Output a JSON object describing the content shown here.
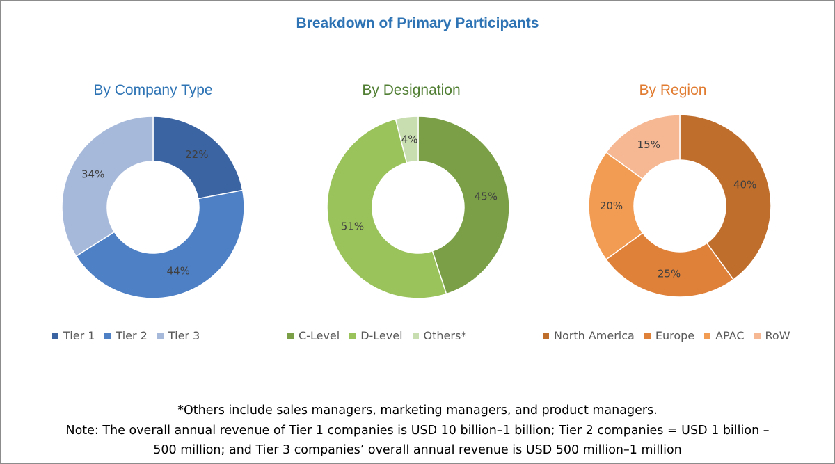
{
  "title": "Breakdown of Primary Participants",
  "chart_data": [
    {
      "type": "pie",
      "title": "By Company Type",
      "title_color": "#2e74b5",
      "categories": [
        "Tier 1",
        "Tier 2",
        "Tier 3"
      ],
      "values": [
        22,
        44,
        34
      ],
      "labels": [
        "22%",
        "44%",
        "34%"
      ],
      "colors": [
        "#3b64a3",
        "#4e80c6",
        "#a7b9da"
      ],
      "legend": "bottom"
    },
    {
      "type": "pie",
      "title": "By Designation",
      "title_color": "#507e32",
      "categories": [
        "C-Level",
        "D-Level",
        "Others*"
      ],
      "values": [
        45,
        51,
        4
      ],
      "labels": [
        "45%",
        "51%",
        "4%"
      ],
      "colors": [
        "#7a9f47",
        "#9bc35c",
        "#c9deb0"
      ],
      "legend": "bottom"
    },
    {
      "type": "pie",
      "title": "By Region",
      "title_color": "#e07b30",
      "categories": [
        "North America",
        "Europe",
        "APAC",
        "RoW"
      ],
      "values": [
        40,
        25,
        20,
        15
      ],
      "labels": [
        "40%",
        "25%",
        "20%",
        "15%"
      ],
      "colors": [
        "#c06e2c",
        "#e0813a",
        "#f29b52",
        "#f6b793"
      ],
      "legend": "bottom"
    }
  ],
  "footnotes": {
    "line1": "*Others include sales managers, marketing managers, and product managers.",
    "line2": "Note: The overall annual revenue of Tier 1 companies is USD 10 billion–1 billion; Tier 2 companies = USD 1 billion –",
    "line3": "500 million; and Tier 3 companies’ overall annual revenue is USD 500 million–1 million"
  }
}
